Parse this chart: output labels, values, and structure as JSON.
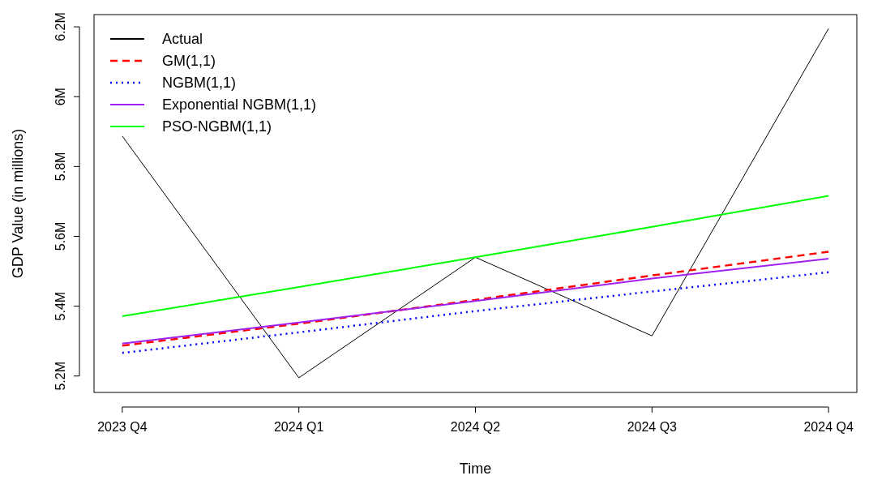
{
  "chart_data": {
    "type": "line",
    "xlabel": "Time",
    "ylabel": "GDP Value (in millions)",
    "categories": [
      "2023 Q4",
      "2024 Q1",
      "2024 Q2",
      "2024 Q3",
      "2024 Q4"
    ],
    "ylim": [
      5.153,
      6.235
    ],
    "yticks": [
      {
        "value": 5.2,
        "label": "5.2M"
      },
      {
        "value": 5.4,
        "label": "5.4M"
      },
      {
        "value": 5.6,
        "label": "5.6M"
      },
      {
        "value": 5.8,
        "label": "5.8M"
      },
      {
        "value": 6.0,
        "label": "6M"
      },
      {
        "value": 6.2,
        "label": "6.2M"
      }
    ],
    "legend": "top left",
    "grid": false,
    "series": [
      {
        "name": "Actual",
        "color": "#000000",
        "values": [
          5.887,
          5.195,
          5.54,
          5.315,
          6.195
        ],
        "line_style": "solid"
      },
      {
        "name": "GM(1,1)",
        "color": "#ff0000",
        "values": [
          5.287,
          5.35,
          5.418,
          5.488,
          5.556
        ],
        "line_style": "dashed"
      },
      {
        "name": "NGBM(1,1)",
        "color": "#0000ff",
        "values": [
          5.266,
          5.325,
          5.386,
          5.442,
          5.497
        ],
        "line_style": "dotted"
      },
      {
        "name": "Exponential NGBM(1,1)",
        "color": "#a020f0",
        "values": [
          5.293,
          5.353,
          5.415,
          5.479,
          5.536
        ],
        "line_style": "solid"
      },
      {
        "name": "PSO-NGBM(1,1)",
        "color": "#00ff00",
        "values": [
          5.371,
          5.455,
          5.54,
          5.627,
          5.716
        ],
        "line_style": "solid"
      }
    ]
  }
}
